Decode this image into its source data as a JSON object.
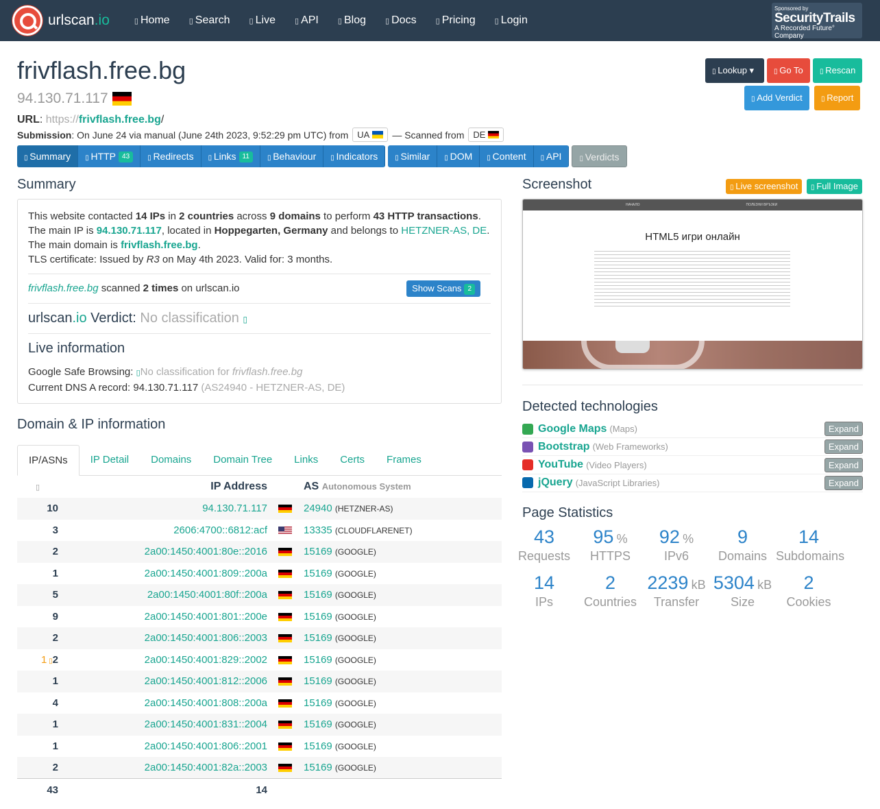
{
  "nav": {
    "brand": "urlscan",
    "brand_tld": ".io",
    "items": [
      "Home",
      "Search",
      "Live",
      "API",
      "Blog",
      "Docs",
      "Pricing",
      "Login"
    ],
    "sponsor_line1": "Sponsored by",
    "sponsor_line2": "SecurityTrails",
    "sponsor_line3": "A Recorded Future° Company"
  },
  "page": {
    "title": "frivflash.free.bg",
    "ip": "94.130.71.117",
    "url_label": "URL",
    "url_scheme": "https://",
    "url_domain": "frivflash.free.bg",
    "url_path": "/",
    "submission_label": "Submission",
    "submission_text": ": On June 24 via manual (June 24th 2023, 9:52:29 pm UTC) from",
    "from_cc": "UA",
    "scanned_text": "— Scanned from",
    "scanned_cc": "DE"
  },
  "actions": {
    "lookup": "Lookup",
    "goto": "Go To",
    "rescan": "Rescan",
    "verdict": "Add Verdict",
    "report": "Report"
  },
  "tabs": {
    "summary": "Summary",
    "http": "HTTP",
    "http_count": "43",
    "redirects": "Redirects",
    "links": "Links",
    "links_count": "11",
    "behaviour": "Behaviour",
    "indicators": "Indicators",
    "similar": "Similar",
    "dom": "DOM",
    "content": "Content",
    "api": "API",
    "verdicts": "Verdicts"
  },
  "summary": {
    "heading": "Summary",
    "t1": "This website contacted ",
    "ips": "14 IPs",
    "t2": " in ",
    "countries": "2 countries",
    "t3": " across ",
    "domains": "9 domains",
    "t4": " to perform ",
    "tx": "43 HTTP transactions",
    "t5": ". The main IP is ",
    "mainip": "94.130.71.117",
    "t6": ", located in ",
    "loc": "Hoppegarten, Germany",
    "t7": " and belongs to ",
    "asn": "HETZNER-AS, DE",
    "t8": ". The main domain is ",
    "maindomain": "frivflash.free.bg",
    "t9": ".",
    "tls": "TLS certificate: Issued by ",
    "tls_issuer": "R3",
    "tls2": " on May 4th 2023. Valid for: 3 months.",
    "scanned_domain": "frivflash.free.bg",
    "scanned_mid": " scanned ",
    "scanned_times": "2 times",
    "scanned_end": " on urlscan.io",
    "show_scans": "Show Scans",
    "show_scans_count": "2",
    "verdict_brand": "urlscan",
    "verdict_tld": ".io",
    "verdict_label": " Verdict: ",
    "verdict_value": "No classification",
    "live_heading": "Live information",
    "gsb_label": "Google Safe Browsing: ",
    "gsb_value": "No classification for ",
    "gsb_domain": "frivflash.free.bg",
    "dns_label": "Current DNS A record: 94.130.71.117 ",
    "dns_as": "(AS24940 - HETZNER-AS, DE)"
  },
  "ipinfo": {
    "heading": "Domain & IP information",
    "tabs": [
      "IP/ASNs",
      "IP Detail",
      "Domains",
      "Domain Tree",
      "Links",
      "Certs",
      "Frames"
    ],
    "col_ip": "IP Address",
    "col_as": "AS",
    "col_as_sub": "Autonomous System",
    "rows": [
      {
        "n": "10",
        "ip": "94.130.71.117",
        "cc": "de",
        "as": "24940",
        "name": "(HETZNER-AS)"
      },
      {
        "n": "3",
        "ip": "2606:4700::6812:acf",
        "cc": "us",
        "as": "13335",
        "name": "(CLOUDFLARENET)"
      },
      {
        "n": "2",
        "ip": "2a00:1450:4001:80e::2016",
        "cc": "de",
        "as": "15169",
        "name": "(GOOGLE)"
      },
      {
        "n": "1",
        "ip": "2a00:1450:4001:809::200a",
        "cc": "de",
        "as": "15169",
        "name": "(GOOGLE)"
      },
      {
        "n": "5",
        "ip": "2a00:1450:4001:80f::200a",
        "cc": "de",
        "as": "15169",
        "name": "(GOOGLE)"
      },
      {
        "n": "9",
        "ip": "2a00:1450:4001:801::200e",
        "cc": "de",
        "as": "15169",
        "name": "(GOOGLE)"
      },
      {
        "n": "2",
        "ip": "2a00:1450:4001:806::2003",
        "cc": "de",
        "as": "15169",
        "name": "(GOOGLE)"
      },
      {
        "n": "2",
        "pre": "1",
        "ip": "2a00:1450:4001:829::2002",
        "cc": "de",
        "as": "15169",
        "name": "(GOOGLE)"
      },
      {
        "n": "1",
        "ip": "2a00:1450:4001:812::2006",
        "cc": "de",
        "as": "15169",
        "name": "(GOOGLE)"
      },
      {
        "n": "4",
        "ip": "2a00:1450:4001:808::200a",
        "cc": "de",
        "as": "15169",
        "name": "(GOOGLE)"
      },
      {
        "n": "1",
        "ip": "2a00:1450:4001:831::2004",
        "cc": "de",
        "as": "15169",
        "name": "(GOOGLE)"
      },
      {
        "n": "1",
        "ip": "2a00:1450:4001:806::2001",
        "cc": "de",
        "as": "15169",
        "name": "(GOOGLE)"
      },
      {
        "n": "2",
        "ip": "2a00:1450:4001:82a::2003",
        "cc": "de",
        "as": "15169",
        "name": "(GOOGLE)"
      }
    ],
    "total_req": "43",
    "total_ips": "14"
  },
  "screenshot": {
    "heading": "Screenshot",
    "live": "Live screenshot",
    "full": "Full Image",
    "nav1": "НАЧАЛО",
    "nav2": "ПОЛЕЗНИ ВРЪЗКИ",
    "page_title": "HTML5 игри онлайн"
  },
  "tech": {
    "heading": "Detected technologies",
    "expand": "Expand",
    "items": [
      {
        "name": "Google Maps",
        "cat": "(Maps)",
        "icon": "google-maps-icon",
        "color": "#34a853"
      },
      {
        "name": "Bootstrap",
        "cat": "(Web Frameworks)",
        "icon": "bootstrap-icon",
        "color": "#7952b3"
      },
      {
        "name": "YouTube",
        "cat": "(Video Players)",
        "icon": "youtube-icon",
        "color": "#e52d27"
      },
      {
        "name": "jQuery",
        "cat": "(JavaScript Libraries)",
        "icon": "jquery-icon",
        "color": "#0769ad"
      }
    ]
  },
  "stats": {
    "heading": "Page Statistics",
    "items": [
      {
        "v": "43",
        "u": "",
        "l": "Requests"
      },
      {
        "v": "95",
        "u": "%",
        "l": "HTTPS"
      },
      {
        "v": "92",
        "u": "%",
        "l": "IPv6"
      },
      {
        "v": "9",
        "u": "",
        "l": "Domains"
      },
      {
        "v": "14",
        "u": "",
        "l": "Subdomains"
      },
      {
        "v": "14",
        "u": "",
        "l": "IPs"
      },
      {
        "v": "2",
        "u": "",
        "l": "Countries"
      },
      {
        "v": "2239",
        "u": "kB",
        "l": "Transfer"
      },
      {
        "v": "5304",
        "u": "kB",
        "l": "Size"
      },
      {
        "v": "2",
        "u": "",
        "l": "Cookies"
      }
    ]
  }
}
